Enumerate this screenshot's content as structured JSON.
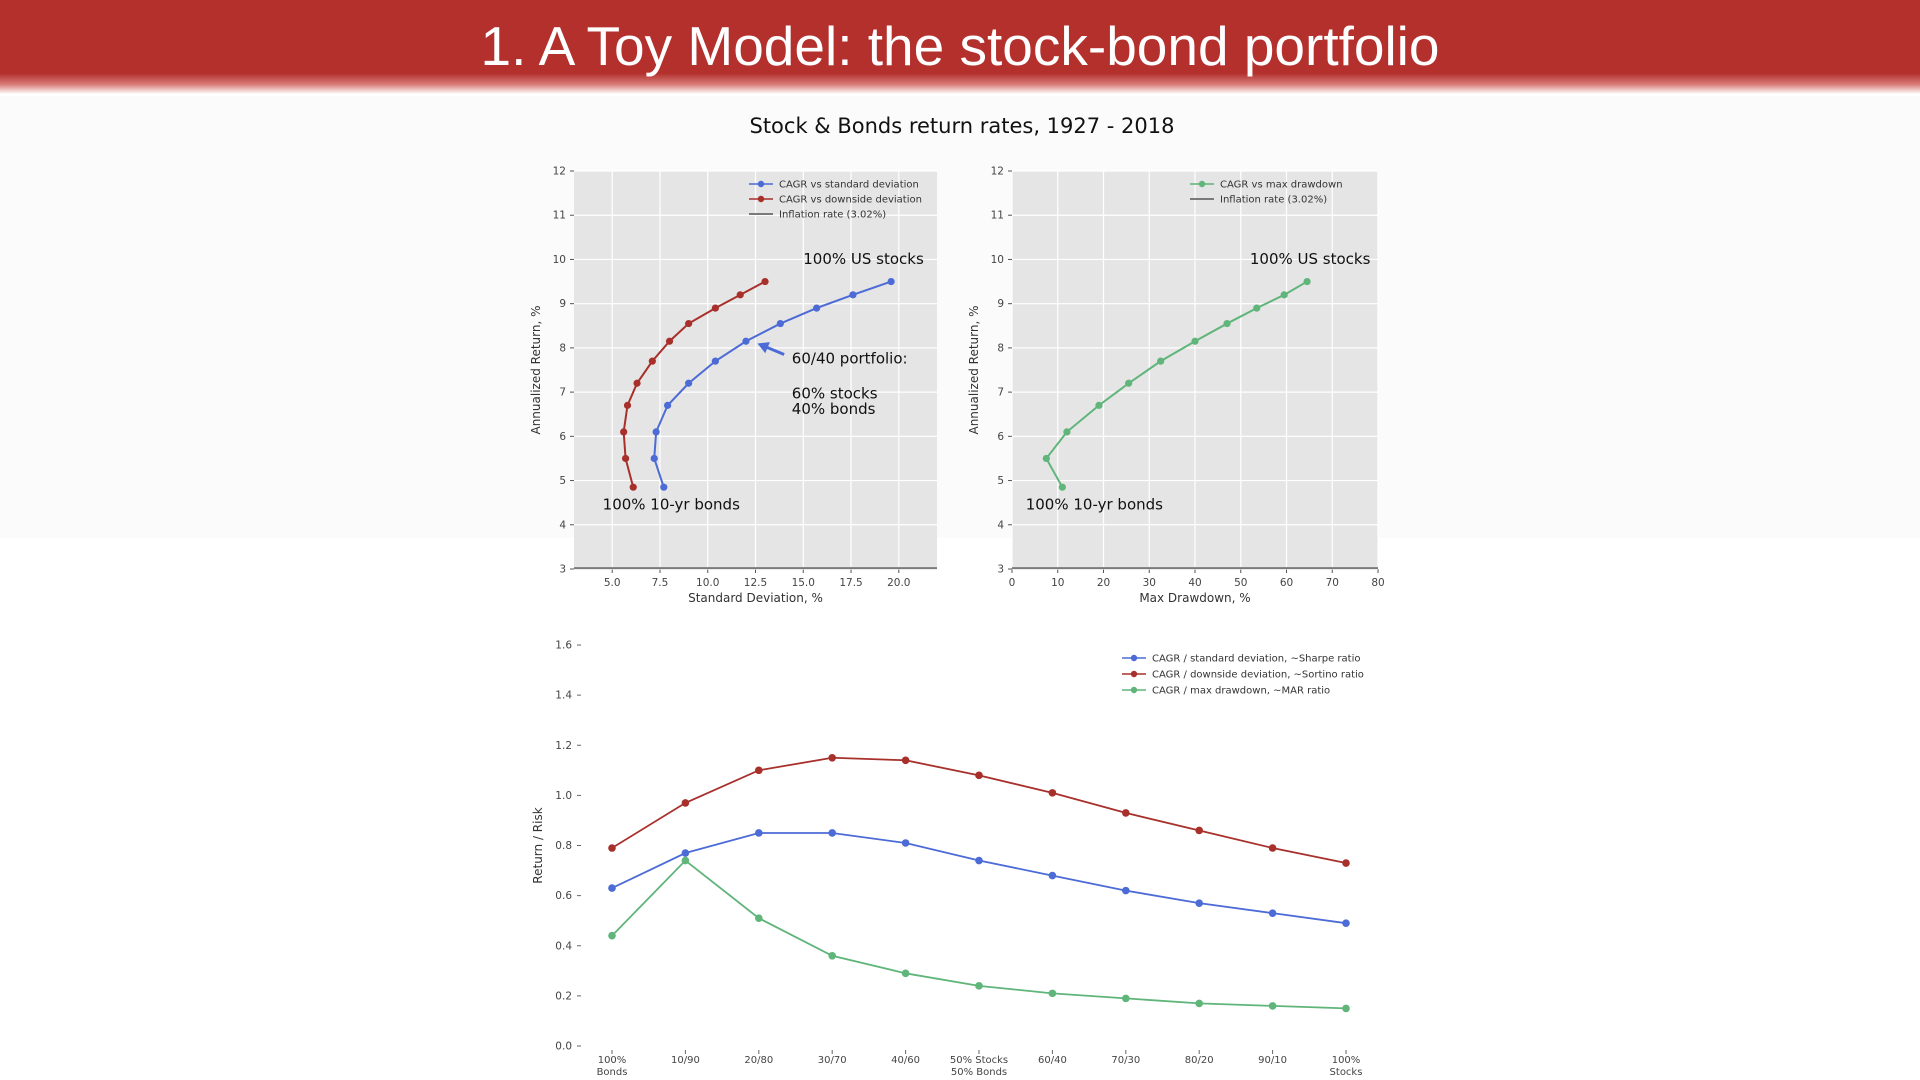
{
  "slide": {
    "title": "1. A Toy Model: the stock-bond portfolio",
    "figure_title": "Stock & Bonds return rates, 1927 - 2018"
  },
  "colors": {
    "banner": "#b3302d",
    "blue": "#4c6bd6",
    "red": "#a8302b",
    "green": "#5fb57a",
    "gray_line": "#7a7a7a",
    "plot_bg": "#e5e5e5"
  },
  "chart_data": [
    {
      "type": "line",
      "xlabel": "Standard Deviation, %",
      "ylabel": "Annualized Return, %",
      "xlim": [
        3.0,
        22.0
      ],
      "ylim": [
        3,
        12
      ],
      "xticks": [
        "5.0",
        "7.5",
        "10.0",
        "12.5",
        "15.0",
        "17.5",
        "20.0"
      ],
      "xtick_values": [
        5,
        7.5,
        10,
        12.5,
        15,
        17.5,
        20
      ],
      "yticks": [
        "3",
        "4",
        "5",
        "6",
        "7",
        "8",
        "9",
        "10",
        "11",
        "12"
      ],
      "grid": true,
      "legend_position": "top-right",
      "series": [
        {
          "name": "CAGR vs standard deviation",
          "color": "#4c6bd6",
          "x": [
            7.7,
            7.2,
            7.3,
            7.9,
            9.0,
            10.4,
            12.0,
            13.8,
            15.7,
            17.6,
            19.6
          ],
          "y": [
            4.85,
            5.5,
            6.1,
            6.7,
            7.2,
            7.7,
            8.15,
            8.55,
            8.9,
            9.2,
            9.5
          ]
        },
        {
          "name": "CAGR vs downside deviation",
          "color": "#a8302b",
          "x": [
            6.1,
            5.7,
            5.6,
            5.8,
            6.3,
            7.1,
            8.0,
            9.0,
            10.4,
            11.7,
            13.0
          ],
          "y": [
            4.85,
            5.5,
            6.1,
            6.7,
            7.2,
            7.7,
            8.15,
            8.55,
            8.9,
            9.2,
            9.5
          ]
        },
        {
          "name": "Inflation rate (3.02%)",
          "color": "#7a7a7a",
          "x": [
            3.0,
            22.0
          ],
          "y": [
            3.02,
            3.02
          ]
        }
      ],
      "annotations": [
        {
          "text": "100% US stocks",
          "x": 15.0,
          "y": 9.9
        },
        {
          "text": "60/40 portfolio:",
          "x": 14.4,
          "y": 7.65
        },
        {
          "text": "60% stocks",
          "x": 14.4,
          "y": 6.85
        },
        {
          "text": "40% bonds",
          "x": 14.4,
          "y": 6.5
        },
        {
          "text": "100% 10-yr bonds",
          "x": 4.5,
          "y": 4.35
        }
      ],
      "arrow": {
        "from_x": 14.0,
        "from_y": 7.85,
        "to_x": 12.6,
        "to_y": 8.1,
        "color": "#4c6bd6"
      }
    },
    {
      "type": "line",
      "xlabel": "Max Drawdown, %",
      "ylabel": "Annualized Return, %",
      "xlim": [
        0,
        80
      ],
      "ylim": [
        3,
        12
      ],
      "xticks": [
        "0",
        "10",
        "20",
        "30",
        "40",
        "50",
        "60",
        "70",
        "80"
      ],
      "xtick_values": [
        0,
        10,
        20,
        30,
        40,
        50,
        60,
        70,
        80
      ],
      "yticks": [
        "3",
        "4",
        "5",
        "6",
        "7",
        "8",
        "9",
        "10",
        "11",
        "12"
      ],
      "grid": true,
      "legend_position": "top-right",
      "series": [
        {
          "name": "CAGR vs max drawdown",
          "color": "#5fb57a",
          "x": [
            11.0,
            7.5,
            12.0,
            19.0,
            25.5,
            32.5,
            40.0,
            47.0,
            53.5,
            59.5,
            64.5
          ],
          "y": [
            4.85,
            5.5,
            6.1,
            6.7,
            7.2,
            7.7,
            8.15,
            8.55,
            8.9,
            9.2,
            9.5
          ]
        },
        {
          "name": "Inflation rate (3.02%)",
          "color": "#7a7a7a",
          "x": [
            0,
            80
          ],
          "y": [
            3.02,
            3.02
          ]
        }
      ],
      "annotations": [
        {
          "text": "100% US stocks",
          "x": 52.0,
          "y": 9.9
        },
        {
          "text": "100% 10-yr bonds",
          "x": 3.0,
          "y": 4.35
        }
      ]
    },
    {
      "type": "line",
      "xlabel": "",
      "ylabel": "Return / Risk",
      "ylim": [
        0.0,
        1.6
      ],
      "yticks": [
        "0.0",
        "0.2",
        "0.4",
        "0.6",
        "0.8",
        "1.0",
        "1.2",
        "1.4",
        "1.6"
      ],
      "grid": false,
      "legend_position": "top-right",
      "categories": [
        "100% Bonds",
        "10/90",
        "20/80",
        "30/70",
        "40/60",
        "50% Stocks 50% Bonds",
        "60/40",
        "70/30",
        "80/20",
        "90/10",
        "100% Stocks"
      ],
      "category_lines": [
        [
          "100%",
          "Bonds"
        ],
        [
          "10/90"
        ],
        [
          "20/80"
        ],
        [
          "30/70"
        ],
        [
          "40/60"
        ],
        [
          "50% Stocks",
          "50% Bonds"
        ],
        [
          "60/40"
        ],
        [
          "70/30"
        ],
        [
          "80/20"
        ],
        [
          "90/10"
        ],
        [
          "100%",
          "Stocks"
        ]
      ],
      "series": [
        {
          "name": "CAGR / standard deviation, ~Sharpe ratio",
          "color": "#4c6bd6",
          "values": [
            0.63,
            0.77,
            0.85,
            0.85,
            0.81,
            0.74,
            0.68,
            0.62,
            0.57,
            0.53,
            0.49
          ]
        },
        {
          "name": "CAGR / downside deviation, ~Sortino ratio",
          "color": "#a8302b",
          "values": [
            0.79,
            0.97,
            1.1,
            1.15,
            1.14,
            1.08,
            1.01,
            0.93,
            0.86,
            0.79,
            0.73
          ]
        },
        {
          "name": "CAGR / max drawdown, ~MAR ratio",
          "color": "#5fb57a",
          "values": [
            0.44,
            0.74,
            0.51,
            0.36,
            0.29,
            0.24,
            0.21,
            0.19,
            0.17,
            0.16,
            0.15
          ]
        }
      ]
    }
  ]
}
